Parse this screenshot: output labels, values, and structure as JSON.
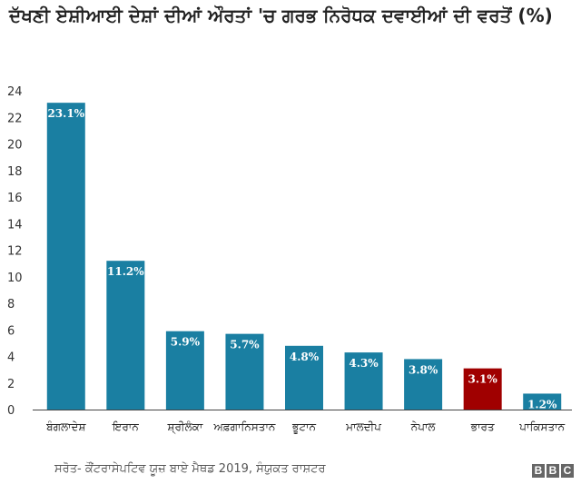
{
  "chart_data": {
    "type": "bar",
    "title": "ਦੱਖਣੀ ਏਸ਼ੀਆਈ ਦੇਸ਼ਾਂ ਦੀਆਂ ਔਰਤਾਂ 'ਚ ਗਰਭ ਨਿਰੋਧਕ ਦਵਾਈਆਂ ਦੀ ਵਰਤੋਂ (%)",
    "categories": [
      "ਬੰਗਲਾਦੇਸ਼",
      "ਇਰਾਨ",
      "ਸ਼੍ਰੀਲੰਕਾ",
      "ਅਫ਼ਗਾਨਿਸਤਾਨ",
      "ਭੂਟਾਨ",
      "ਮਾਲਦੀਪ",
      "ਨੇਪਾਲ",
      "ਭਾਰਤ",
      "ਪਾਕਿਸਤਾਨ"
    ],
    "values": [
      23.1,
      11.2,
      5.9,
      5.7,
      4.8,
      4.3,
      3.8,
      3.1,
      1.2
    ],
    "value_labels": [
      "23.1%",
      "11.2%",
      "5.9%",
      "5.7%",
      "4.8%",
      "4.3%",
      "3.8%",
      "3.1%",
      "1.2%"
    ],
    "highlight_index": 7,
    "colors": {
      "bar": "#1a7fa2",
      "highlight": "#a00000",
      "label": "#ffffff"
    },
    "ylim": [
      0,
      24
    ],
    "yticks": [
      0,
      2,
      4,
      6,
      8,
      10,
      12,
      14,
      16,
      18,
      20,
      22,
      24
    ],
    "grid": false,
    "xlabel": "",
    "ylabel": ""
  },
  "footer": {
    "source": "ਸਰੋਤ- ਕੌਂਟਰਾਸੇਪਟਿਵ ਯੂਜ਼ ਬਾਏ ਮੈਥਡ 2019, ਸੰਯੁਕਤ ਰਾਸ਼ਟਰ",
    "logo": [
      "B",
      "B",
      "C"
    ]
  }
}
